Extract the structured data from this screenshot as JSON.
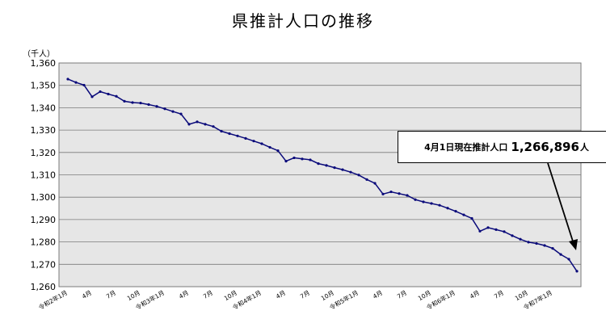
{
  "chart_data": {
    "type": "line",
    "title": "県推計人口の推移",
    "ylabel": "（千人）",
    "xlabel": "",
    "ylim": [
      1260,
      1360
    ],
    "yticks": [
      "1,260",
      "1,270",
      "1,280",
      "1,290",
      "1,300",
      "1,310",
      "1,320",
      "1,330",
      "1,340",
      "1,350",
      "1,360"
    ],
    "grid": true,
    "legend": "none",
    "line_color": "#0a0a7a",
    "plot_background": "#e6e6e6",
    "xtick_labels": [
      {
        "index": 0,
        "label": "令和2年1月"
      },
      {
        "index": 3,
        "label": "4月"
      },
      {
        "index": 6,
        "label": "7月"
      },
      {
        "index": 9,
        "label": "10月"
      },
      {
        "index": 12,
        "label": "令和3年1月"
      },
      {
        "index": 15,
        "label": "4月"
      },
      {
        "index": 18,
        "label": "7月"
      },
      {
        "index": 21,
        "label": "10月"
      },
      {
        "index": 24,
        "label": "令和4年1月"
      },
      {
        "index": 27,
        "label": "4月"
      },
      {
        "index": 30,
        "label": "7月"
      },
      {
        "index": 33,
        "label": "10月"
      },
      {
        "index": 36,
        "label": "令和5年1月"
      },
      {
        "index": 39,
        "label": "4月"
      },
      {
        "index": 42,
        "label": "7月"
      },
      {
        "index": 45,
        "label": "10月"
      },
      {
        "index": 48,
        "label": "令和6年1月"
      },
      {
        "index": 51,
        "label": "4月"
      },
      {
        "index": 54,
        "label": "7月"
      },
      {
        "index": 57,
        "label": "10月"
      },
      {
        "index": 60,
        "label": "令和7年1月"
      }
    ],
    "series": [
      {
        "values": [
          1352.8,
          1351.3,
          1350.1,
          1344.9,
          1347.2,
          1346.1,
          1345.1,
          1342.9,
          1342.3,
          1342.1,
          1341.4,
          1340.6,
          1339.5,
          1338.3,
          1337.2,
          1332.6,
          1333.7,
          1332.6,
          1331.6,
          1329.5,
          1328.4,
          1327.4,
          1326.3,
          1325.1,
          1323.9,
          1322.3,
          1320.8,
          1316.1,
          1317.6,
          1317.1,
          1316.7,
          1315.0,
          1314.2,
          1313.2,
          1312.3,
          1311.2,
          1309.9,
          1307.9,
          1306.2,
          1301.4,
          1302.4,
          1301.6,
          1300.8,
          1298.9,
          1297.9,
          1297.2,
          1296.4,
          1295.1,
          1293.7,
          1292.1,
          1290.5,
          1284.8,
          1286.4,
          1285.5,
          1284.6,
          1282.8,
          1281.2,
          1279.9,
          1279.3,
          1278.4,
          1277.1,
          1274.4,
          1272.3,
          1266.9
        ]
      }
    ],
    "annotation": {
      "prefix": "4月1日現在推計人口",
      "value": "1,266,896",
      "unit": "人"
    }
  }
}
